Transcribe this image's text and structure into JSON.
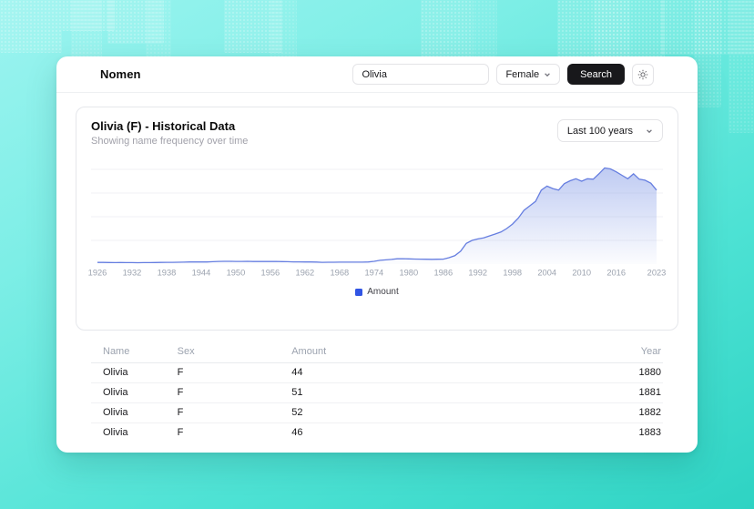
{
  "app": {
    "brand": "Nomen",
    "search": {
      "value": "Olivia"
    },
    "sex_select": {
      "value": "Female"
    },
    "search_button_label": "Search",
    "theme_icon": "sun-icon"
  },
  "card": {
    "title": "Olivia (F) - Historical Data",
    "subtitle": "Showing name frequency over time",
    "range_select": {
      "value": "Last 100 years"
    },
    "legend": {
      "label": "Amount"
    }
  },
  "chart_data": {
    "type": "area",
    "title": "Olivia (F) - Historical Data",
    "series_name": "Amount",
    "x": [
      1926,
      1927,
      1928,
      1929,
      1930,
      1931,
      1932,
      1933,
      1934,
      1935,
      1936,
      1937,
      1938,
      1939,
      1940,
      1941,
      1942,
      1943,
      1944,
      1945,
      1946,
      1947,
      1948,
      1949,
      1950,
      1951,
      1952,
      1953,
      1954,
      1955,
      1956,
      1957,
      1958,
      1959,
      1960,
      1961,
      1962,
      1963,
      1964,
      1965,
      1966,
      1967,
      1968,
      1969,
      1970,
      1971,
      1972,
      1973,
      1974,
      1975,
      1976,
      1977,
      1978,
      1979,
      1980,
      1981,
      1982,
      1983,
      1984,
      1985,
      1986,
      1987,
      1988,
      1989,
      1990,
      1991,
      1992,
      1993,
      1994,
      1995,
      1996,
      1997,
      1998,
      1999,
      2000,
      2001,
      2002,
      2003,
      2004,
      2005,
      2006,
      2007,
      2008,
      2009,
      2010,
      2011,
      2012,
      2013,
      2014,
      2015,
      2016,
      2017,
      2018,
      2019,
      2020,
      2021,
      2022,
      2023
    ],
    "values": [
      330,
      340,
      310,
      300,
      320,
      300,
      290,
      270,
      300,
      300,
      310,
      330,
      350,
      350,
      370,
      390,
      430,
      450,
      430,
      420,
      480,
      540,
      550,
      550,
      540,
      540,
      545,
      520,
      530,
      515,
      520,
      530,
      490,
      485,
      450,
      440,
      420,
      420,
      400,
      350,
      365,
      360,
      380,
      390,
      395,
      390,
      390,
      430,
      560,
      750,
      850,
      950,
      1080,
      1090,
      1050,
      1020,
      1000,
      970,
      960,
      975,
      1000,
      1300,
      1700,
      2600,
      4200,
      4800,
      5100,
      5300,
      5700,
      6100,
      6500,
      7200,
      8100,
      9300,
      10900,
      11800,
      12700,
      15000,
      15800,
      15300,
      15000,
      16300,
      16900,
      17300,
      16800,
      17300,
      17200,
      18300,
      19500,
      19300,
      18700,
      18000,
      17300,
      18300,
      17200,
      17000,
      16400,
      15000
    ],
    "x_ticks": [
      1926,
      1932,
      1938,
      1944,
      1950,
      1956,
      1962,
      1968,
      1974,
      1980,
      1986,
      1992,
      1998,
      2004,
      2010,
      2016,
      2023
    ],
    "ylim": [
      0,
      21600
    ],
    "gridline_values": [
      4800,
      9600,
      14400,
      19200
    ],
    "grid": true,
    "legend_position": "bottom",
    "xlabel": "",
    "ylabel": ""
  },
  "table": {
    "columns": [
      "Name",
      "Sex",
      "Amount",
      "Year"
    ],
    "rows": [
      [
        "Olivia",
        "F",
        "44",
        "1880"
      ],
      [
        "Olivia",
        "F",
        "51",
        "1881"
      ],
      [
        "Olivia",
        "F",
        "52",
        "1882"
      ],
      [
        "Olivia",
        "F",
        "46",
        "1883"
      ]
    ]
  },
  "colors": {
    "accent_button": "#18181b",
    "chart_line": "#667ee0",
    "chart_fill": "#8aa0e8",
    "legend_swatch": "#3155e4",
    "gridline": "#f1f2f4",
    "tick_label": "#9ca3af",
    "background_teal": "#2ed3c3"
  }
}
